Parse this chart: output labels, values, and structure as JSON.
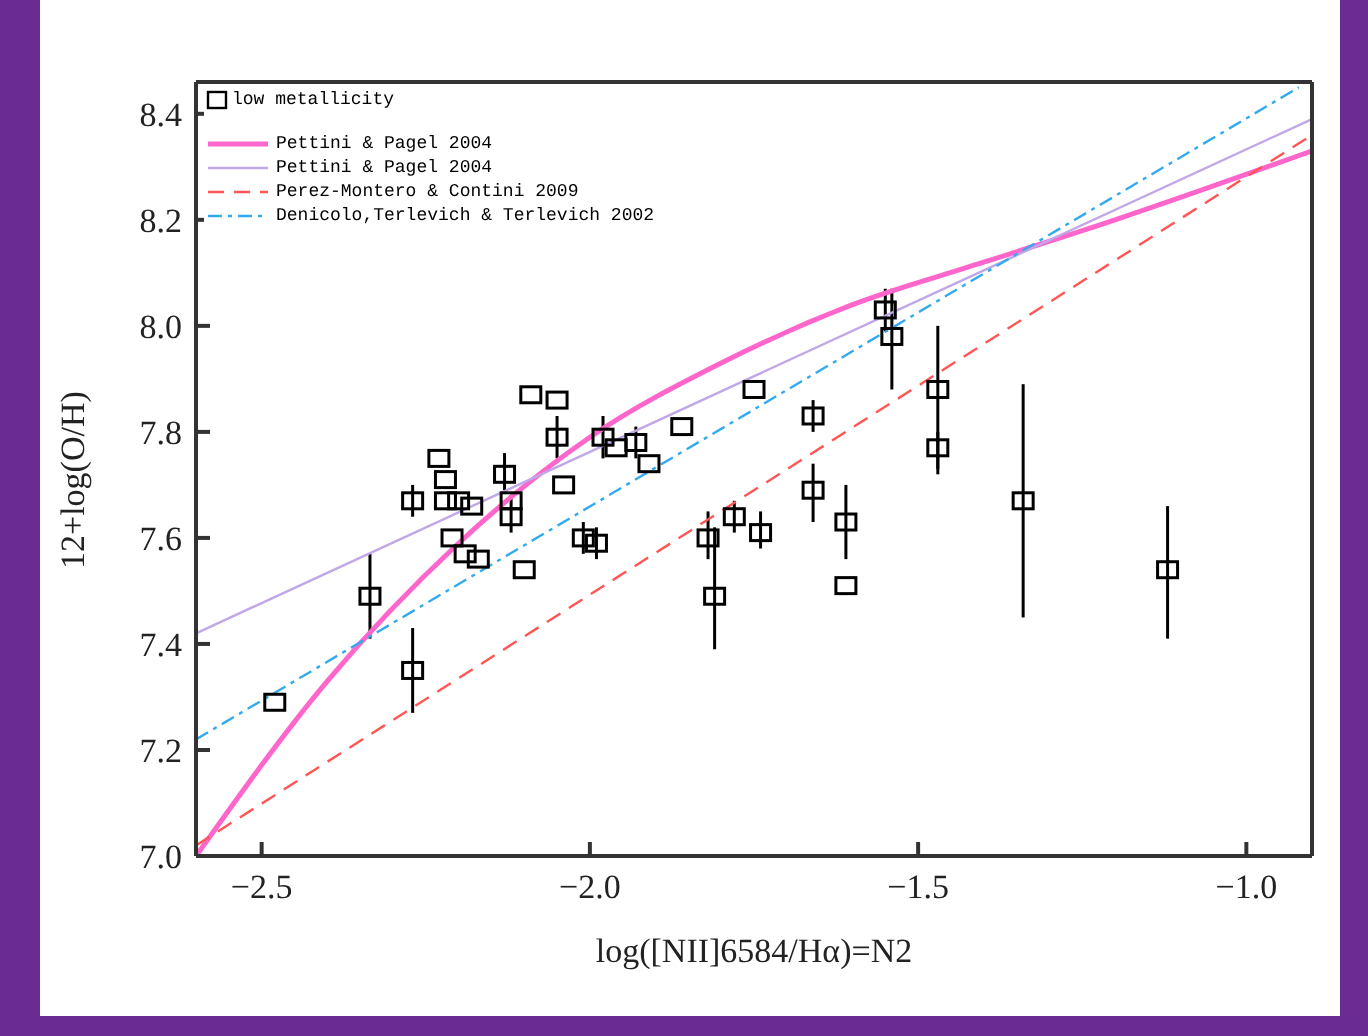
{
  "chart_data": {
    "type": "scatter",
    "xlabel": "log([NII]6584/Hα)=N2",
    "ylabel": "12+log(O/H)",
    "xlim": [
      -2.6,
      -0.9
    ],
    "ylim": [
      7.0,
      8.46
    ],
    "xticks": [
      {
        "value": -2.5,
        "label": "−2.5"
      },
      {
        "value": -2.0,
        "label": "−2.0"
      },
      {
        "value": -1.5,
        "label": "−1.5"
      },
      {
        "value": -1.0,
        "label": "−1.0"
      }
    ],
    "yticks": [
      {
        "value": 7.0,
        "label": "7.0"
      },
      {
        "value": 7.2,
        "label": "7.2"
      },
      {
        "value": 7.4,
        "label": "7.4"
      },
      {
        "value": 7.6,
        "label": "7.6"
      },
      {
        "value": 7.8,
        "label": "7.8"
      },
      {
        "value": 8.0,
        "label": "8.0"
      },
      {
        "value": 8.2,
        "label": "8.2"
      },
      {
        "value": 8.4,
        "label": "8.4"
      }
    ],
    "grid": false,
    "legend": "top left",
    "marker": "square",
    "series": [
      {
        "name": "low metallicity",
        "color": "#000000",
        "x": [
          -2.48,
          -2.335,
          -2.27,
          -2.27,
          -2.23,
          -2.22,
          -2.22,
          -2.21,
          -2.2,
          -2.19,
          -2.18,
          -2.17,
          -2.13,
          -2.12,
          -2.12,
          -2.1,
          -2.09,
          -2.05,
          -2.05,
          -2.04,
          -2.01,
          -1.99,
          -1.98,
          -1.96,
          -1.93,
          -1.91,
          -1.86,
          -1.82,
          -1.81,
          -1.78,
          -1.75,
          -1.74,
          -1.66,
          -1.66,
          -1.61,
          -1.61,
          -1.55,
          -1.54,
          -1.47,
          -1.47,
          -1.34,
          -1.12
        ],
        "values": [
          7.29,
          7.49,
          7.35,
          7.67,
          7.75,
          7.71,
          7.67,
          7.6,
          7.67,
          7.57,
          7.66,
          7.56,
          7.72,
          7.64,
          7.67,
          7.54,
          7.87,
          7.86,
          7.79,
          7.7,
          7.6,
          7.59,
          7.79,
          7.77,
          7.78,
          7.74,
          7.81,
          7.6,
          7.49,
          7.64,
          7.88,
          7.61,
          7.83,
          7.69,
          7.63,
          7.51,
          8.03,
          7.98,
          7.88,
          7.77,
          7.67,
          7.54
        ],
        "errors": [
          null,
          [
            7.41,
            7.57
          ],
          [
            7.27,
            7.43
          ],
          [
            7.64,
            7.7
          ],
          null,
          null,
          null,
          null,
          null,
          null,
          null,
          null,
          [
            7.69,
            7.76
          ],
          [
            7.61,
            7.68
          ],
          null,
          null,
          null,
          null,
          [
            7.75,
            7.83
          ],
          null,
          [
            7.57,
            7.63
          ],
          [
            7.56,
            7.62
          ],
          [
            7.75,
            7.83
          ],
          null,
          [
            7.75,
            7.81
          ],
          null,
          null,
          [
            7.56,
            7.65
          ],
          [
            7.39,
            7.62
          ],
          [
            7.61,
            7.67
          ],
          null,
          [
            7.58,
            7.65
          ],
          [
            7.8,
            7.86
          ],
          [
            7.63,
            7.74
          ],
          [
            7.56,
            7.7
          ],
          null,
          [
            7.99,
            8.07
          ],
          [
            7.88,
            8.07
          ],
          [
            7.73,
            8.0
          ],
          [
            7.72,
            7.8
          ],
          [
            7.45,
            7.89
          ],
          [
            7.41,
            7.66
          ]
        ]
      },
      {
        "name": "Pettini & Pagel 2004",
        "type": "line",
        "color": "#ff66cc",
        "line_style": "solid",
        "marker": "none",
        "x": [
          -2.6,
          -2.4,
          -2.2,
          -2.0,
          -1.8,
          -1.6,
          -1.4,
          -1.2,
          -0.9
        ],
        "values": [
          7.0,
          7.33,
          7.59,
          7.79,
          7.93,
          8.04,
          8.12,
          8.2,
          8.33
        ]
      },
      {
        "name": "Pettini & Pagel 2004",
        "type": "line",
        "color": "#c0a8e8",
        "line_style": "solid",
        "marker": "none",
        "x": [
          -2.6,
          -0.9
        ],
        "values": [
          7.42,
          8.39
        ]
      },
      {
        "name": "Perez-Montero & Contini 2009",
        "type": "line",
        "color": "#ff5555",
        "line_style": "dashed",
        "marker": "none",
        "x": [
          -2.6,
          -0.9
        ],
        "values": [
          7.02,
          8.36
        ]
      },
      {
        "name": "Denicolo,Terlevich & Terlevich 2002",
        "type": "line",
        "color": "#33aaee",
        "line_style": "dashdot",
        "marker": "none",
        "x": [
          -2.6,
          -0.92
        ],
        "values": [
          7.22,
          8.45
        ]
      }
    ]
  }
}
